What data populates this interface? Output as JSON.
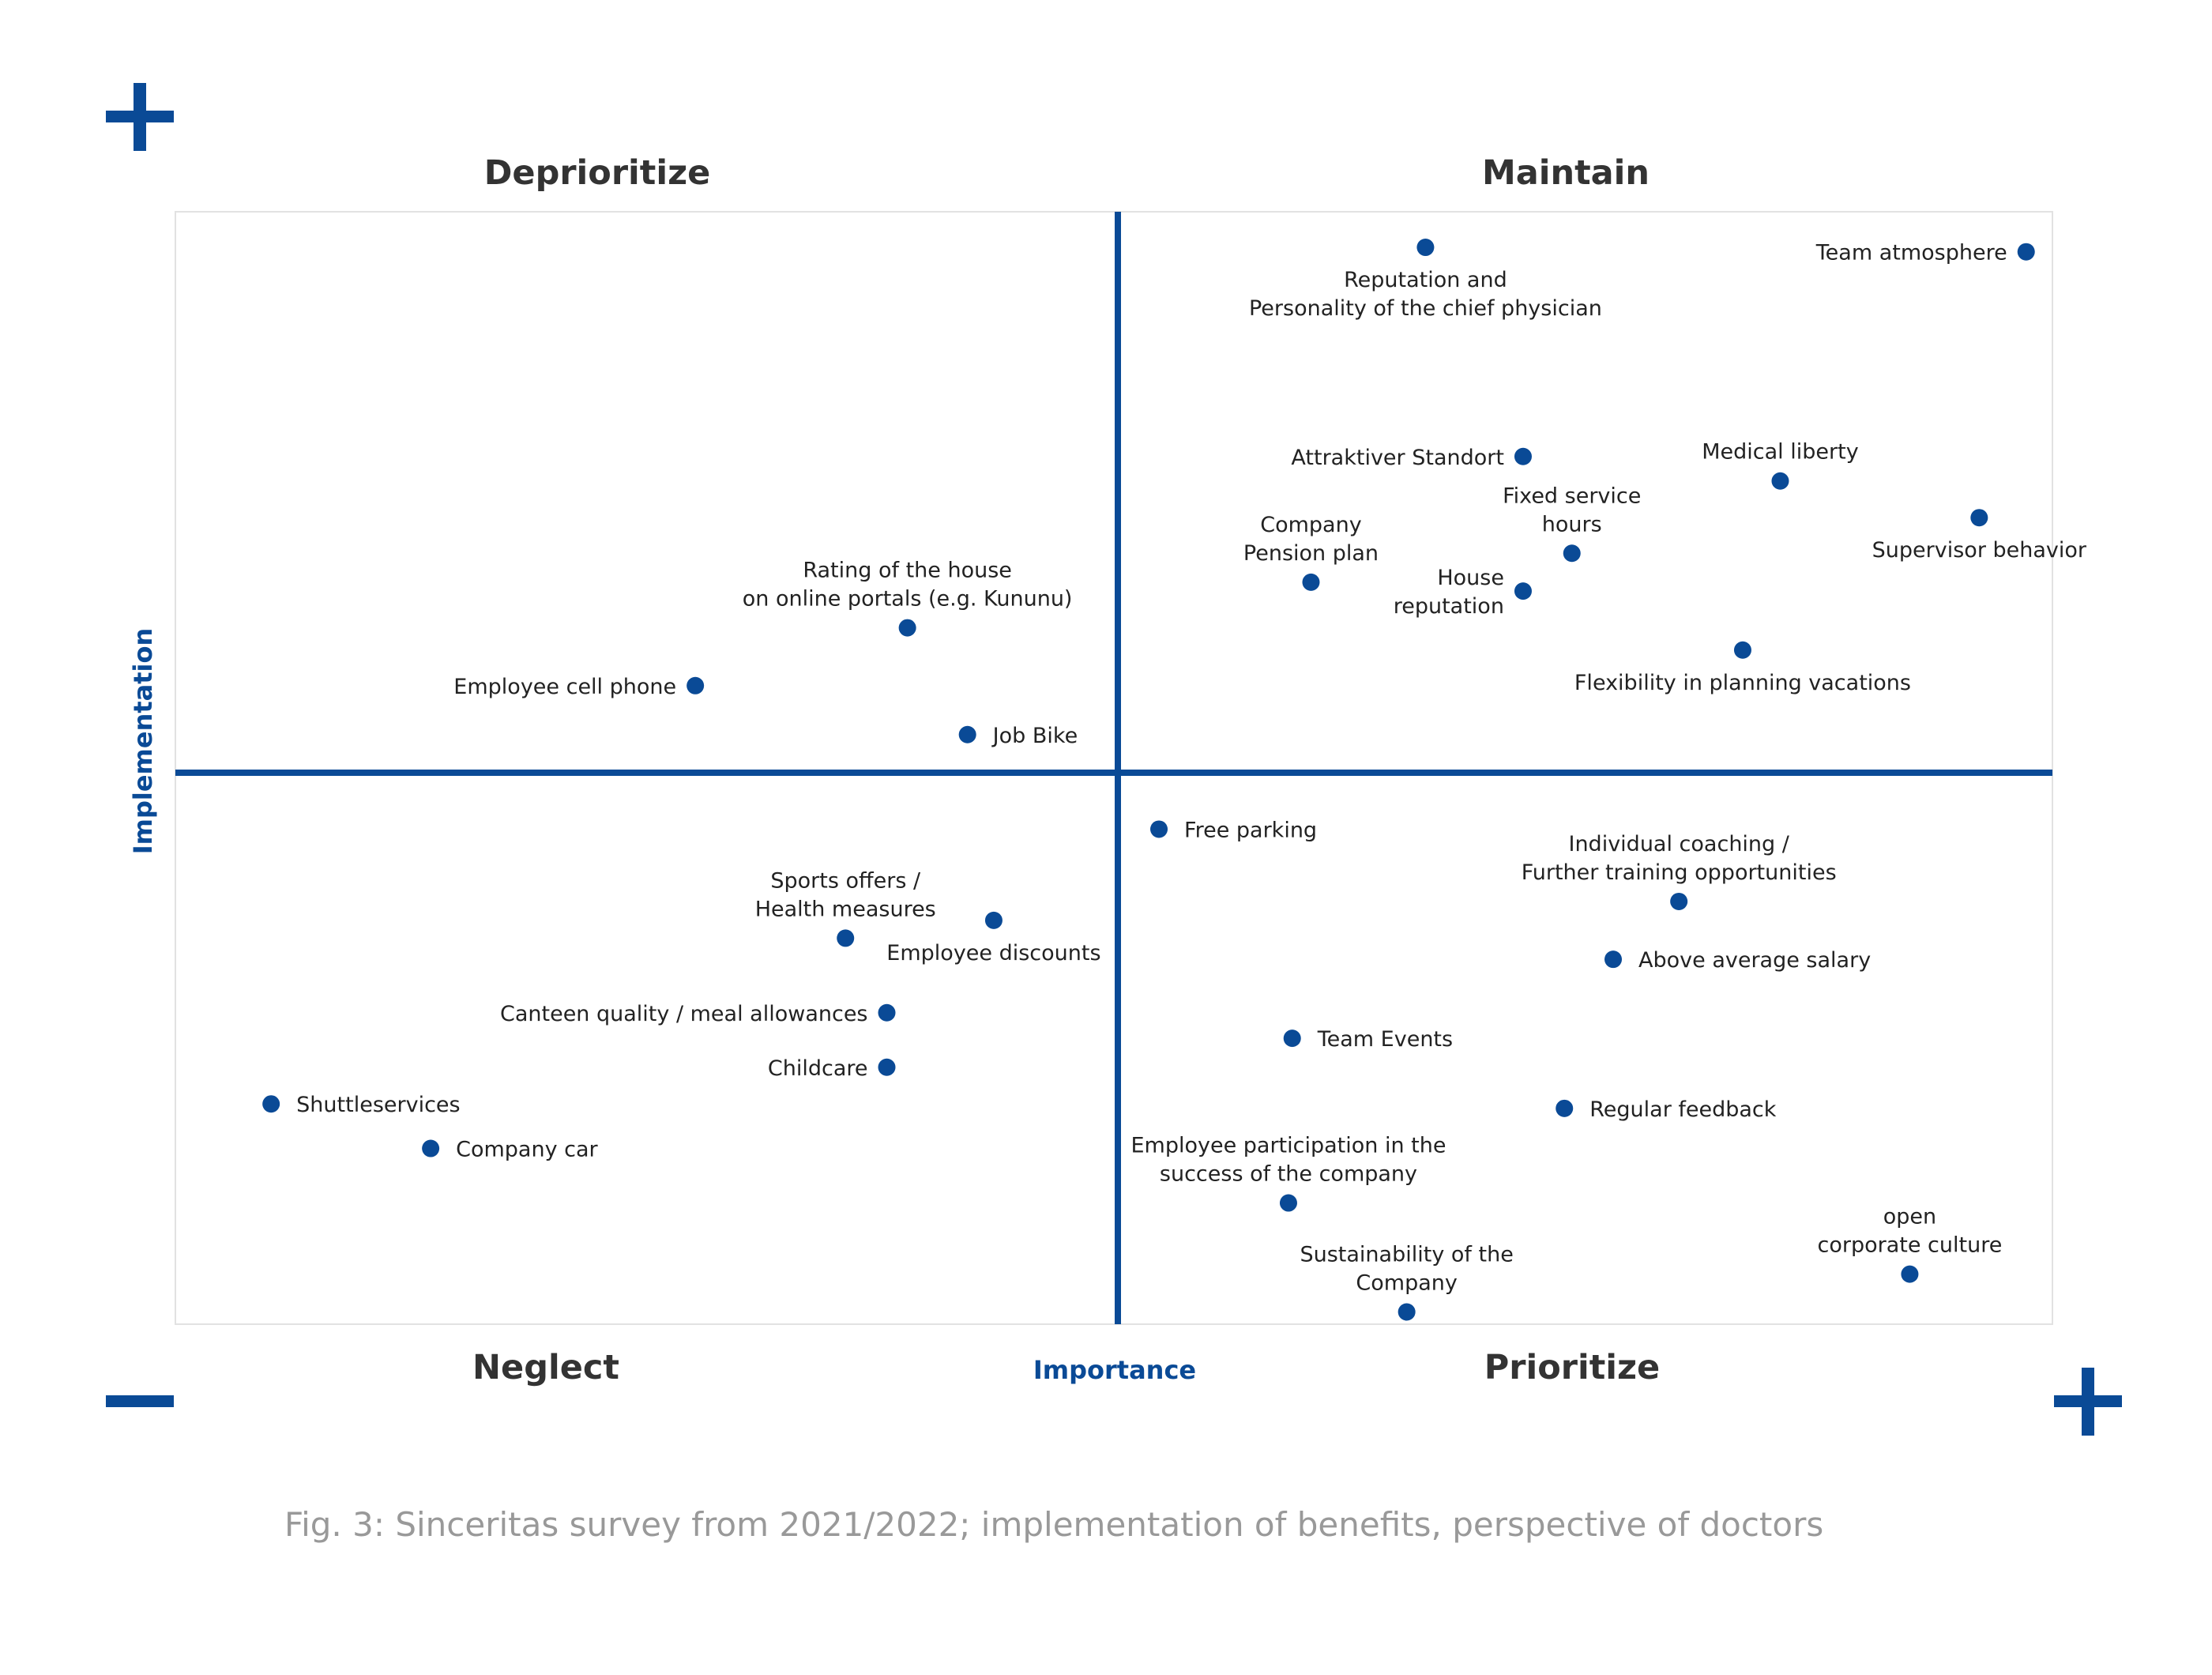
{
  "colors": {
    "accent": "#0a4a96",
    "frame": "#e2e2e2",
    "quadrant_text": "#333333",
    "caption": "#999999"
  },
  "figure": {
    "caption": "Fig. 3: Sinceritas survey from 2021/2022; implementation of benefits, perspective of doctors"
  },
  "chart_data": {
    "type": "scatter",
    "xlabel": "Importance",
    "ylabel": "Implementation",
    "xlim": [
      0,
      100
    ],
    "ylim": [
      0,
      100
    ],
    "grid": false,
    "quadrants": {
      "top_left": "Deprioritize",
      "top_right": "Maintain",
      "bottom_left": "Neglect",
      "bottom_right": "Prioritize"
    },
    "corner_symbols": {
      "top_left": "+",
      "bottom_left": "−",
      "bottom_right": "+"
    },
    "points": [
      {
        "label": [
          "Reputation and",
          "Personality of the chief physician"
        ],
        "x": 66.6,
        "y": 96.8,
        "pos": "below"
      },
      {
        "label": [
          "Team atmosphere"
        ],
        "x": 98.6,
        "y": 96.4,
        "pos": "left"
      },
      {
        "label": [
          "Attraktiver Standort"
        ],
        "x": 71.8,
        "y": 78.0,
        "pos": "left"
      },
      {
        "label": [
          "Medical liberty"
        ],
        "x": 85.5,
        "y": 75.8,
        "pos": "above"
      },
      {
        "label": [
          "Supervisor behavior"
        ],
        "x": 96.1,
        "y": 72.5,
        "pos": "below"
      },
      {
        "label": [
          "Fixed service",
          "hours"
        ],
        "x": 74.4,
        "y": 69.3,
        "pos": "above"
      },
      {
        "label": [
          "Company",
          "Pension plan"
        ],
        "x": 60.5,
        "y": 66.7,
        "pos": "above"
      },
      {
        "label": [
          "House",
          "reputation"
        ],
        "x": 71.8,
        "y": 65.9,
        "pos": "left"
      },
      {
        "label": [
          "Flexibility in planning vacations"
        ],
        "x": 83.5,
        "y": 60.6,
        "pos": "below"
      },
      {
        "label": [
          "Rating of the house",
          "on online portals (e.g. Kununu)"
        ],
        "x": 39.0,
        "y": 62.6,
        "pos": "above"
      },
      {
        "label": [
          "Employee cell phone"
        ],
        "x": 27.7,
        "y": 57.4,
        "pos": "left"
      },
      {
        "label": [
          "Job Bike"
        ],
        "x": 42.2,
        "y": 53.0,
        "pos": "right"
      },
      {
        "label": [
          "Free parking"
        ],
        "x": 52.4,
        "y": 44.5,
        "pos": "right"
      },
      {
        "label": [
          "Individual coaching /",
          "Further training opportunities"
        ],
        "x": 80.1,
        "y": 38.0,
        "pos": "above"
      },
      {
        "label": [
          "Above average salary"
        ],
        "x": 76.6,
        "y": 32.8,
        "pos": "right"
      },
      {
        "label": [
          "Sports offers /",
          "Health measures"
        ],
        "x": 35.7,
        "y": 34.7,
        "pos": "above"
      },
      {
        "label": [
          "Employee discounts"
        ],
        "x": 43.6,
        "y": 36.3,
        "pos": "below"
      },
      {
        "label": [
          "Canteen quality / meal allowances"
        ],
        "x": 37.9,
        "y": 28.0,
        "pos": "left"
      },
      {
        "label": [
          "Childcare"
        ],
        "x": 37.9,
        "y": 23.1,
        "pos": "left"
      },
      {
        "label": [
          "Team Events"
        ],
        "x": 59.5,
        "y": 25.7,
        "pos": "right"
      },
      {
        "label": [
          "Shuttleservices"
        ],
        "x": 5.1,
        "y": 19.8,
        "pos": "right"
      },
      {
        "label": [
          "Company car"
        ],
        "x": 13.6,
        "y": 15.8,
        "pos": "right"
      },
      {
        "label": [
          "Regular feedback"
        ],
        "x": 74.0,
        "y": 19.4,
        "pos": "right"
      },
      {
        "label": [
          "Employee participation in the",
          "success of the company"
        ],
        "x": 59.3,
        "y": 10.9,
        "pos": "above"
      },
      {
        "label": [
          "open",
          "corporate culture"
        ],
        "x": 92.4,
        "y": 4.5,
        "pos": "above"
      },
      {
        "label": [
          "Sustainability of the",
          "Company"
        ],
        "x": 65.6,
        "y": 1.1,
        "pos": "above"
      }
    ]
  }
}
